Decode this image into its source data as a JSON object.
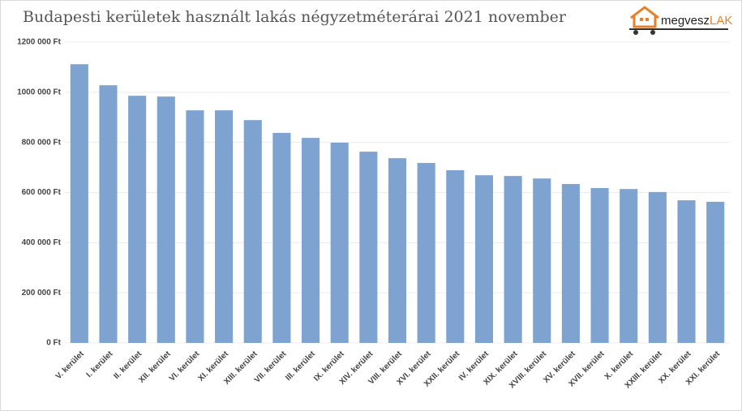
{
  "chart_data": {
    "type": "bar",
    "title": "Budapesti kerületek használt lakás négyzetméterárai 2021 november",
    "logo": {
      "part1": "megvesz",
      "part2": "LAK"
    },
    "categories": [
      "V. kerület",
      "I. kerület",
      "II. kerület",
      "XII. kerület",
      "VI. kerület",
      "XI. kerület",
      "XIII. kerület",
      "VII. kerület",
      "III. kerület",
      "IX. kerület",
      "XIV. kerület",
      "VIII. kerület",
      "XVI. kerület",
      "XXII. kerület",
      "IV. kerület",
      "XIX. kerület",
      "XVIII. kerület",
      "XV. kerület",
      "XVII. kerület",
      "X. kerület",
      "XXIII. kerület",
      "XX. kerület",
      "XXI. kerület"
    ],
    "values": [
      1112000,
      1028000,
      986000,
      983000,
      928000,
      928000,
      889000,
      838000,
      818000,
      799000,
      763000,
      737000,
      718000,
      689000,
      669000,
      666000,
      656000,
      634000,
      618000,
      614000,
      602000,
      569000,
      563000
    ],
    "color": "#7fa3d1",
    "ylim": [
      0,
      1200000
    ],
    "yticks": [
      {
        "value": 0,
        "label": "0 Ft"
      },
      {
        "value": 200000,
        "label": "200 000 Ft"
      },
      {
        "value": 400000,
        "label": "400 000 Ft"
      },
      {
        "value": 600000,
        "label": "600 000 Ft"
      },
      {
        "value": 800000,
        "label": "800 000 Ft"
      },
      {
        "value": 1000000,
        "label": "1000 000 Ft"
      },
      {
        "value": 1200000,
        "label": "1200 000 Ft"
      }
    ],
    "grid": true
  }
}
